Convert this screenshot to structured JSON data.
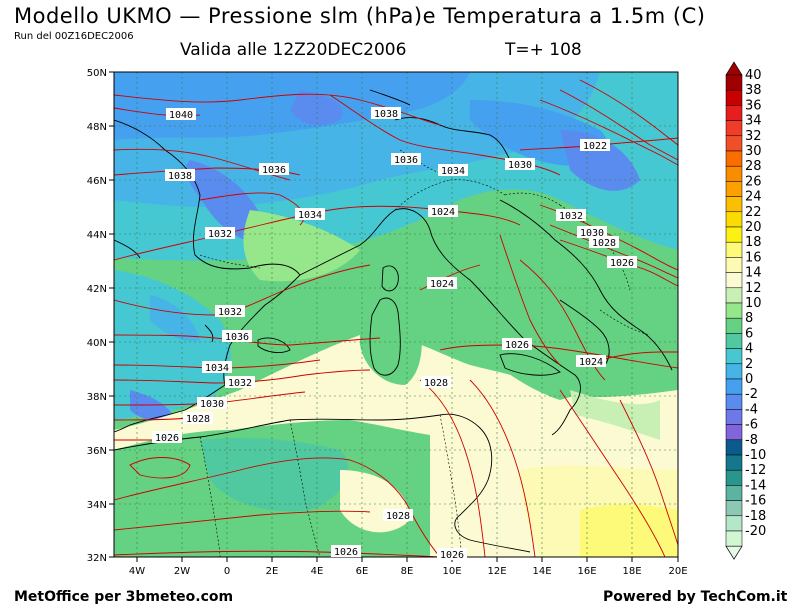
{
  "header": {
    "title": "Modello UKMO — Pressione slm (hPa)e Temperatura a 1.5m (C)",
    "run": "Run del 00Z16DEC2006",
    "valid": "Valida alle 12Z20DEC2006",
    "lead": "T=+ 108"
  },
  "footer": {
    "left": "MetOffice per 3bmeteo.com",
    "right": "Powered by TechCom.it"
  },
  "axes": {
    "lat_labels": [
      "50N",
      "48N",
      "46N",
      "44N",
      "42N",
      "40N",
      "38N",
      "36N",
      "34N",
      "32N"
    ],
    "lon_labels": [
      "4W",
      "2W",
      "0",
      "2E",
      "4E",
      "6E",
      "8E",
      "10E",
      "12E",
      "14E",
      "16E",
      "18E",
      "20E"
    ]
  },
  "isobars": [
    "1040",
    "1038",
    "1036",
    "1036",
    "1038",
    "1034",
    "1032",
    "1032",
    "1036",
    "1034",
    "1032",
    "1030",
    "1028",
    "1026",
    "1024",
    "1030",
    "1034",
    "1032",
    "1030",
    "1028",
    "1026",
    "1024",
    "1022",
    "1026",
    "1024",
    "1028",
    "1028",
    "1026",
    "1026"
  ],
  "colorbar": {
    "labels": [
      "40",
      "38",
      "36",
      "34",
      "32",
      "30",
      "28",
      "26",
      "24",
      "22",
      "20",
      "18",
      "16",
      "14",
      "12",
      "10",
      "8",
      "6",
      "4",
      "2",
      "0",
      "-2",
      "-4",
      "-6",
      "-8",
      "-10",
      "-12",
      "-14",
      "-16",
      "-18",
      "-20"
    ],
    "colors": [
      "#a00000",
      "#c80000",
      "#e61e1e",
      "#f03c28",
      "#f05028",
      "#fa6e00",
      "#fa8c00",
      "#fca000",
      "#fcbe00",
      "#fcdc00",
      "#fcf014",
      "#fcfa78",
      "#fcfab4",
      "#fcfad2",
      "#c8f0b4",
      "#96e68c",
      "#64d282",
      "#50c8a0",
      "#46c8d2",
      "#46b4e6",
      "#46a0f0",
      "#5a8cf0",
      "#6e78e6",
      "#8264dc",
      "#0a5a8c",
      "#14788c",
      "#28968c",
      "#5ab4a0",
      "#8cc8b4",
      "#b4e6c8",
      "#d2f5d2"
    ],
    "top_arrow_color": "#a00000",
    "bottom_arrow_color": "#e6f8e6"
  }
}
